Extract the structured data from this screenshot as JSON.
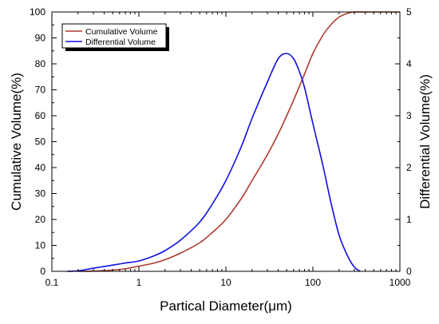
{
  "chart_data": {
    "type": "line",
    "xlabel": "Partical Diameter(μm)",
    "ylabel_left": "Cumulative Volume(%)",
    "ylabel_right": "Differential Volume(%)",
    "xscale": "log",
    "xlim": [
      0.1,
      1000
    ],
    "ylim_left": [
      0,
      100
    ],
    "ylim_right": [
      0,
      5
    ],
    "x_tick_labels": [
      "0.1",
      "1",
      "10",
      "100",
      "1000"
    ],
    "y_left_tick_labels": [
      "0",
      "10",
      "20",
      "30",
      "40",
      "50",
      "60",
      "70",
      "80",
      "90",
      "100"
    ],
    "y_right_tick_labels": [
      "0",
      "1",
      "2",
      "3",
      "4",
      "5"
    ],
    "grid": false,
    "legend_position": "top-left",
    "series": [
      {
        "name": "Cumulative Volume",
        "axis": "left",
        "color": "#b03a2e",
        "x": [
          0.2,
          0.3,
          0.5,
          0.7,
          1,
          1.5,
          2,
          3,
          5,
          7,
          10,
          15,
          20,
          30,
          40,
          50,
          60,
          80,
          100,
          130,
          160,
          200,
          250,
          300,
          400,
          600,
          1000
        ],
        "y": [
          0,
          0.1,
          0.5,
          1,
          2,
          3.2,
          4.5,
          7,
          11,
          15,
          20,
          28,
          35,
          45,
          53,
          60,
          66,
          76,
          84,
          91,
          95,
          98,
          99.5,
          100,
          100,
          100,
          100
        ]
      },
      {
        "name": "Differential Volume",
        "axis": "right",
        "color": "#1010e0",
        "x": [
          0.15,
          0.2,
          0.3,
          0.5,
          0.7,
          1,
          1.5,
          2,
          3,
          5,
          7,
          10,
          15,
          20,
          30,
          40,
          50,
          60,
          70,
          80,
          100,
          130,
          160,
          200,
          250,
          300,
          350
        ],
        "y": [
          0,
          0.01,
          0.06,
          0.12,
          0.16,
          0.2,
          0.3,
          0.4,
          0.6,
          0.95,
          1.3,
          1.75,
          2.4,
          2.95,
          3.65,
          4.1,
          4.2,
          4.1,
          3.85,
          3.55,
          2.85,
          2.05,
          1.35,
          0.7,
          0.3,
          0.08,
          0
        ]
      }
    ]
  }
}
